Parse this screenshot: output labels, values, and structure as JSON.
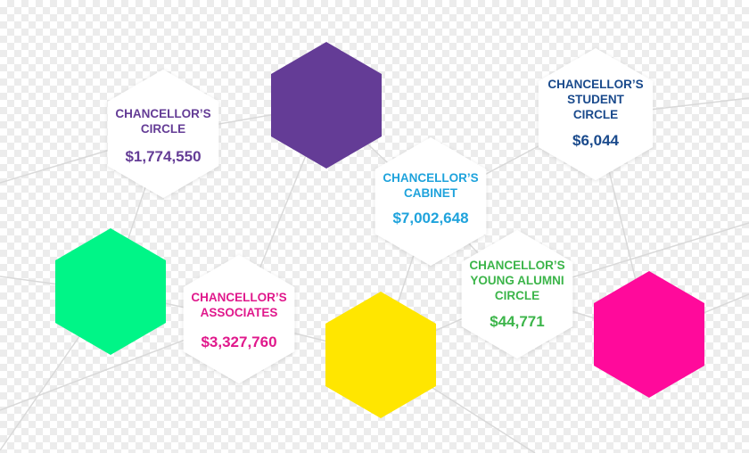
{
  "colors": {
    "purple": "#643c96",
    "green": "#00f587",
    "yellow": "#ffe600",
    "magenta": "#ff0a9b",
    "text_purple": "#643c96",
    "text_blue": "#1a4a8c",
    "text_cyan": "#1fa3dc",
    "text_magenta": "#e0198c",
    "text_green": "#3cb54a"
  },
  "circles": [
    {
      "id": "chancellors-circle",
      "title_lines": [
        "CHANCELLOR’S",
        "CIRCLE"
      ],
      "amount": "$1,774,550",
      "color_key": "text_purple"
    },
    {
      "id": "chancellors-student-circle",
      "title_lines": [
        "CHANCELLOR’S",
        "STUDENT",
        "CIRCLE"
      ],
      "amount": "$6,044",
      "color_key": "text_blue"
    },
    {
      "id": "chancellors-cabinet",
      "title_lines": [
        "CHANCELLOR’S",
        "CABINET"
      ],
      "amount": "$7,002,648",
      "color_key": "text_cyan"
    },
    {
      "id": "chancellors-associates",
      "title_lines": [
        "CHANCELLOR’S",
        "ASSOCIATES"
      ],
      "amount": "$3,327,760",
      "color_key": "text_magenta"
    },
    {
      "id": "chancellors-young-alumni-circle",
      "title_lines": [
        "CHANCELLOR’S",
        "YOUNG ALUMNI",
        "CIRCLE"
      ],
      "amount": "$44,771",
      "color_key": "text_green"
    }
  ]
}
